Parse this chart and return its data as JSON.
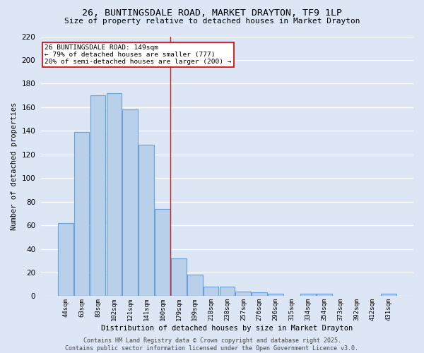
{
  "title1": "26, BUNTINGSDALE ROAD, MARKET DRAYTON, TF9 1LP",
  "title2": "Size of property relative to detached houses in Market Drayton",
  "xlabel": "Distribution of detached houses by size in Market Drayton",
  "ylabel": "Number of detached properties",
  "categories": [
    "44sqm",
    "63sqm",
    "83sqm",
    "102sqm",
    "121sqm",
    "141sqm",
    "160sqm",
    "179sqm",
    "199sqm",
    "218sqm",
    "238sqm",
    "257sqm",
    "276sqm",
    "296sqm",
    "315sqm",
    "334sqm",
    "354sqm",
    "373sqm",
    "392sqm",
    "412sqm",
    "431sqm"
  ],
  "values": [
    62,
    139,
    170,
    172,
    158,
    128,
    74,
    32,
    18,
    8,
    8,
    4,
    3,
    2,
    0,
    2,
    2,
    0,
    0,
    0,
    2
  ],
  "bar_color": "#b8d0ea",
  "bar_edge_color": "#6a9fd8",
  "annotation_text": "26 BUNTINGSDALE ROAD: 149sqm\n← 79% of detached houses are smaller (777)\n20% of semi-detached houses are larger (200) →",
  "annotation_box_color": "#ffffff",
  "annotation_box_edge_color": "#cc0000",
  "vline_x_index": 6.5,
  "vline_color": "#cc2222",
  "bg_color": "#dce6f5",
  "grid_color": "#ffffff",
  "footer": "Contains HM Land Registry data © Crown copyright and database right 2025.\nContains public sector information licensed under the Open Government Licence v3.0.",
  "ylim": [
    0,
    220
  ],
  "yticks": [
    0,
    20,
    40,
    60,
    80,
    100,
    120,
    140,
    160,
    180,
    200,
    220
  ]
}
